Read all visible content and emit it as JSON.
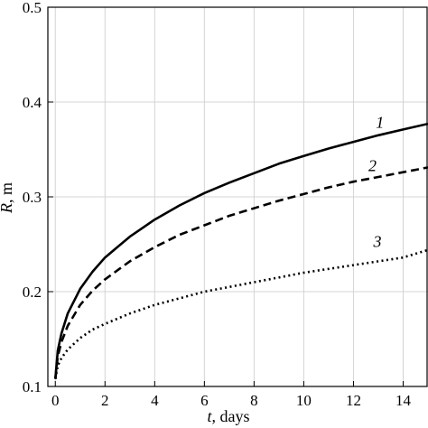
{
  "chart_data": {
    "type": "line",
    "xlabel_var": "t",
    "xlabel_unit": ", days",
    "ylabel_var": "R",
    "ylabel_unit": ", m",
    "xlim": [
      -0.3,
      15
    ],
    "ylim": [
      0.1,
      0.5
    ],
    "x_ticks": [
      0,
      2,
      4,
      6,
      8,
      10,
      12,
      14
    ],
    "y_ticks": [
      0.1,
      0.2,
      0.3,
      0.4,
      0.5
    ],
    "x_tick_labels": [
      "0",
      "2",
      "4",
      "6",
      "8",
      "10",
      "12",
      "14"
    ],
    "y_tick_labels": [
      "0.1",
      "0.2",
      "0.3",
      "0.4",
      "0.5"
    ],
    "grid": true,
    "series": [
      {
        "label": "1",
        "style": "solid",
        "x": [
          0,
          0.1,
          0.25,
          0.5,
          1,
          1.5,
          2,
          3,
          4,
          5,
          6,
          7,
          8,
          9,
          10,
          11,
          12,
          13,
          14,
          15
        ],
        "y": [
          0.108,
          0.138,
          0.156,
          0.177,
          0.203,
          0.221,
          0.236,
          0.258,
          0.276,
          0.291,
          0.304,
          0.315,
          0.325,
          0.335,
          0.343,
          0.351,
          0.358,
          0.365,
          0.371,
          0.377
        ],
        "label_x": 12.9,
        "label_y": 0.373
      },
      {
        "label": "2",
        "style": "dashed",
        "x": [
          0,
          0.1,
          0.25,
          0.5,
          1,
          1.5,
          2,
          3,
          4,
          5,
          6,
          7,
          8,
          9,
          10,
          11,
          12,
          13,
          14,
          15
        ],
        "y": [
          0.108,
          0.132,
          0.147,
          0.164,
          0.186,
          0.201,
          0.213,
          0.232,
          0.247,
          0.26,
          0.27,
          0.28,
          0.288,
          0.296,
          0.303,
          0.31,
          0.316,
          0.321,
          0.326,
          0.331
        ],
        "label_x": 12.6,
        "label_y": 0.327
      },
      {
        "label": "3",
        "style": "dotted",
        "x": [
          0,
          0.1,
          0.25,
          0.5,
          1,
          1.5,
          2,
          3,
          4,
          5,
          6,
          7,
          8,
          9,
          10,
          11,
          12,
          13,
          14,
          15
        ],
        "y": [
          0.108,
          0.122,
          0.13,
          0.139,
          0.151,
          0.16,
          0.166,
          0.177,
          0.186,
          0.193,
          0.2,
          0.205,
          0.21,
          0.215,
          0.22,
          0.224,
          0.228,
          0.232,
          0.236,
          0.244
        ],
        "label_x": 12.8,
        "label_y": 0.247
      }
    ]
  }
}
